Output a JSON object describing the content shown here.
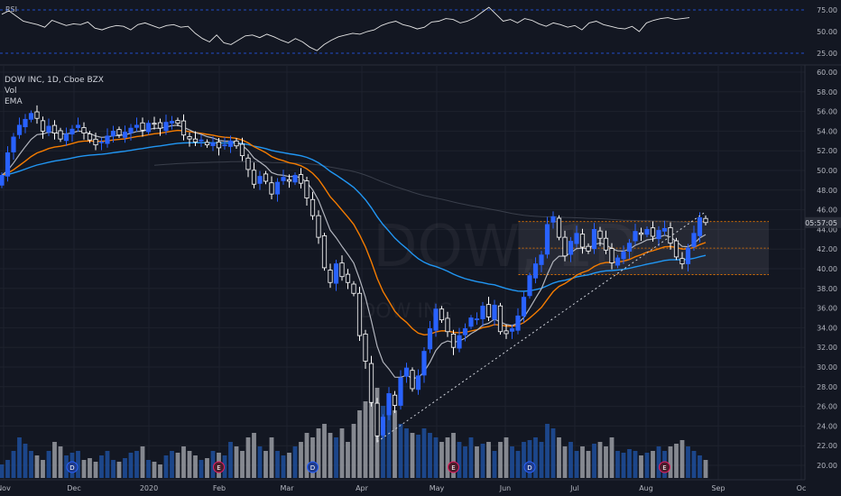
{
  "chart_data": {
    "type": "candlestick",
    "legend": {
      "symbol_line": "DOW INC, 1D, Cboe BZX",
      "indicators": [
        "Vol",
        "EMA"
      ]
    },
    "rsi": {
      "label": "RSI",
      "tick_labels": [
        "75.00",
        "50.00",
        "25.00"
      ],
      "values": [
        70,
        74,
        68,
        62,
        60,
        58,
        55,
        63,
        60,
        57,
        59,
        58,
        61,
        54,
        52,
        55,
        57,
        56,
        52,
        58,
        60,
        57,
        54,
        57,
        58,
        55,
        56,
        48,
        42,
        38,
        46,
        37,
        35,
        40,
        45,
        46,
        43,
        47,
        44,
        40,
        37,
        42,
        38,
        32,
        28,
        35,
        40,
        44,
        46,
        48,
        47,
        50,
        52,
        57,
        60,
        62,
        58,
        56,
        53,
        55,
        61,
        62,
        65,
        64,
        60,
        62,
        66,
        72,
        78,
        70,
        62,
        64,
        60,
        65,
        63,
        59,
        56,
        60,
        58,
        55,
        57,
        52,
        60,
        62,
        58,
        56,
        54,
        53,
        56,
        50,
        60,
        63,
        65,
        66,
        64,
        65,
        66
      ]
    },
    "price_axis": {
      "tick_labels": [
        "60.00",
        "58.00",
        "56.00",
        "54.00",
        "52.00",
        "50.00",
        "48.00",
        "46.00",
        "44.00",
        "42.00",
        "40.00",
        "38.00",
        "36.00",
        "34.00",
        "32.00",
        "30.00",
        "28.00",
        "26.00",
        "24.00",
        "22.00",
        "20.00"
      ],
      "current_label": "05:57:05",
      "current_price": 44.7
    },
    "time_axis": {
      "tick_labels": [
        "Nov",
        "Dec",
        "2020",
        "Feb",
        "Mar",
        "Apr",
        "May",
        "Jun",
        "Jul",
        "Aug",
        "Sep",
        "Oc"
      ]
    },
    "watermark": {
      "symbol": "DOW, 1D",
      "name": "DOW INC"
    },
    "closes": [
      49.5,
      51.8,
      53.4,
      54.6,
      55.2,
      55.8,
      55.3,
      54.0,
      54.5,
      53.8,
      53.2,
      53.7,
      54.2,
      54.6,
      53.8,
      53.1,
      52.6,
      52.9,
      53.5,
      54.0,
      53.6,
      53.9,
      54.3,
      54.6,
      54.1,
      54.8,
      54.7,
      54.3,
      54.9,
      55.0,
      54.8,
      53.6,
      53.2,
      52.9,
      53.1,
      52.6,
      52.8,
      52.3,
      52.6,
      53.0,
      52.5,
      51.5,
      50.1,
      48.6,
      49.4,
      48.9,
      47.6,
      48.8,
      49.3,
      48.9,
      49.5,
      48.7,
      47.2,
      45.4,
      43.2,
      40.1,
      38.6,
      40.5,
      39.2,
      38.6,
      37.5,
      33.2,
      30.6,
      26.4,
      23.0,
      24.9,
      27.3,
      26.1,
      28.9,
      29.9,
      27.8,
      29.1,
      31.6,
      33.9,
      35.9,
      34.8,
      33.6,
      32.0,
      33.2,
      33.9,
      35.0,
      34.9,
      36.2,
      35.1,
      36.3,
      33.6,
      33.4,
      33.9,
      35.2,
      37.1,
      39.3,
      40.5,
      41.4,
      44.5,
      45.3,
      43.2,
      41.3,
      42.8,
      43.6,
      42.2,
      41.8,
      44.0,
      43.1,
      41.9,
      40.6,
      41.1,
      41.7,
      42.6,
      43.8,
      43.5,
      44.0,
      43.3,
      43.9,
      44.1,
      42.6,
      41.2,
      40.5,
      42.1,
      43.6,
      45.2,
      44.7
    ],
    "volume_relative": [
      0.15,
      0.2,
      0.3,
      0.45,
      0.38,
      0.3,
      0.25,
      0.2,
      0.3,
      0.4,
      0.35,
      0.25,
      0.28,
      0.3,
      0.2,
      0.22,
      0.18,
      0.25,
      0.3,
      0.2,
      0.18,
      0.22,
      0.28,
      0.3,
      0.35,
      0.2,
      0.18,
      0.15,
      0.25,
      0.3,
      0.28,
      0.35,
      0.3,
      0.25,
      0.2,
      0.22,
      0.3,
      0.28,
      0.25,
      0.4,
      0.35,
      0.3,
      0.45,
      0.5,
      0.35,
      0.3,
      0.45,
      0.3,
      0.25,
      0.28,
      0.35,
      0.4,
      0.5,
      0.45,
      0.55,
      0.6,
      0.5,
      0.45,
      0.55,
      0.4,
      0.6,
      0.75,
      0.85,
      0.9,
      1.0,
      0.8,
      0.7,
      0.75,
      0.6,
      0.55,
      0.5,
      0.48,
      0.55,
      0.5,
      0.45,
      0.4,
      0.45,
      0.5,
      0.4,
      0.35,
      0.45,
      0.35,
      0.38,
      0.4,
      0.3,
      0.4,
      0.45,
      0.35,
      0.3,
      0.4,
      0.42,
      0.45,
      0.4,
      0.6,
      0.55,
      0.45,
      0.35,
      0.4,
      0.3,
      0.35,
      0.3,
      0.38,
      0.4,
      0.35,
      0.45,
      0.3,
      0.28,
      0.32,
      0.3,
      0.25,
      0.28,
      0.3,
      0.35,
      0.3,
      0.35,
      0.38,
      0.42,
      0.35,
      0.3,
      0.25,
      0.2
    ],
    "event_markers": [
      {
        "letter": "D",
        "bar": 12
      },
      {
        "letter": "E",
        "bar": 37
      },
      {
        "letter": "D",
        "bar": 53
      },
      {
        "letter": "E",
        "bar": 77
      },
      {
        "letter": "D",
        "bar": 90
      },
      {
        "letter": "E",
        "bar": 113
      }
    ],
    "rectangle": {
      "top": 44.8,
      "bottom": 39.4,
      "mid": 42.1,
      "from_bar": 89
    },
    "trendline": {
      "from_bar": 64,
      "from_price": 22.4,
      "to_bar": 120,
      "to_price": 45.8
    }
  },
  "colors": {
    "background": "#131722",
    "grid": "#1e222d",
    "text": "#b2b5be",
    "up_candle": "#2962ff",
    "down_candle": "#ffffff",
    "ema_short": "#b2b5be",
    "ema_mid": "#f57c00",
    "ema_long": "#2196f3",
    "ema_very_long": "#3a3f4b",
    "rsi_line": "#e6e6e6",
    "rsi_band": "#2962ff",
    "volume_up": "#1f4f9c",
    "volume_down": "#9a9ca3"
  }
}
